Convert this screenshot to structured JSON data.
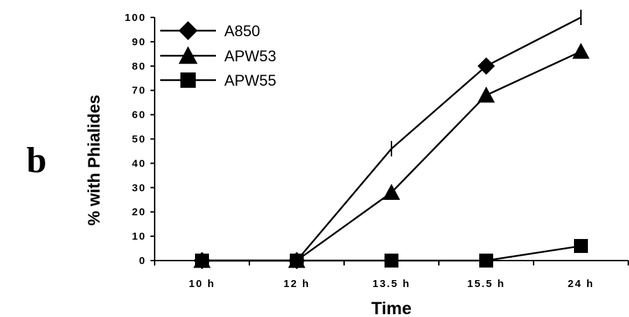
{
  "panel_label": "b",
  "chart_data": {
    "type": "line",
    "title": "",
    "xlabel": "Time",
    "ylabel": "% with Phialides",
    "categories": [
      "10 h",
      "12 h",
      "13.5 h",
      "15.5 h",
      "24 h"
    ],
    "ylim": [
      0,
      100
    ],
    "yticks": [
      "0",
      "10",
      "20",
      "30",
      "40",
      "50",
      "60",
      "70",
      "80",
      "90",
      "100"
    ],
    "grid": false,
    "legend_position": "top-left",
    "series": [
      {
        "name": "A850",
        "marker": "diamond",
        "values": [
          0,
          0,
          46,
          80,
          100
        ],
        "color": "#000000"
      },
      {
        "name": "APW53",
        "marker": "triangle",
        "values": [
          0,
          0,
          28,
          68,
          86
        ],
        "color": "#000000"
      },
      {
        "name": "APW55",
        "marker": "square",
        "values": [
          0,
          0,
          0,
          0,
          6
        ],
        "color": "#000000"
      }
    ]
  }
}
